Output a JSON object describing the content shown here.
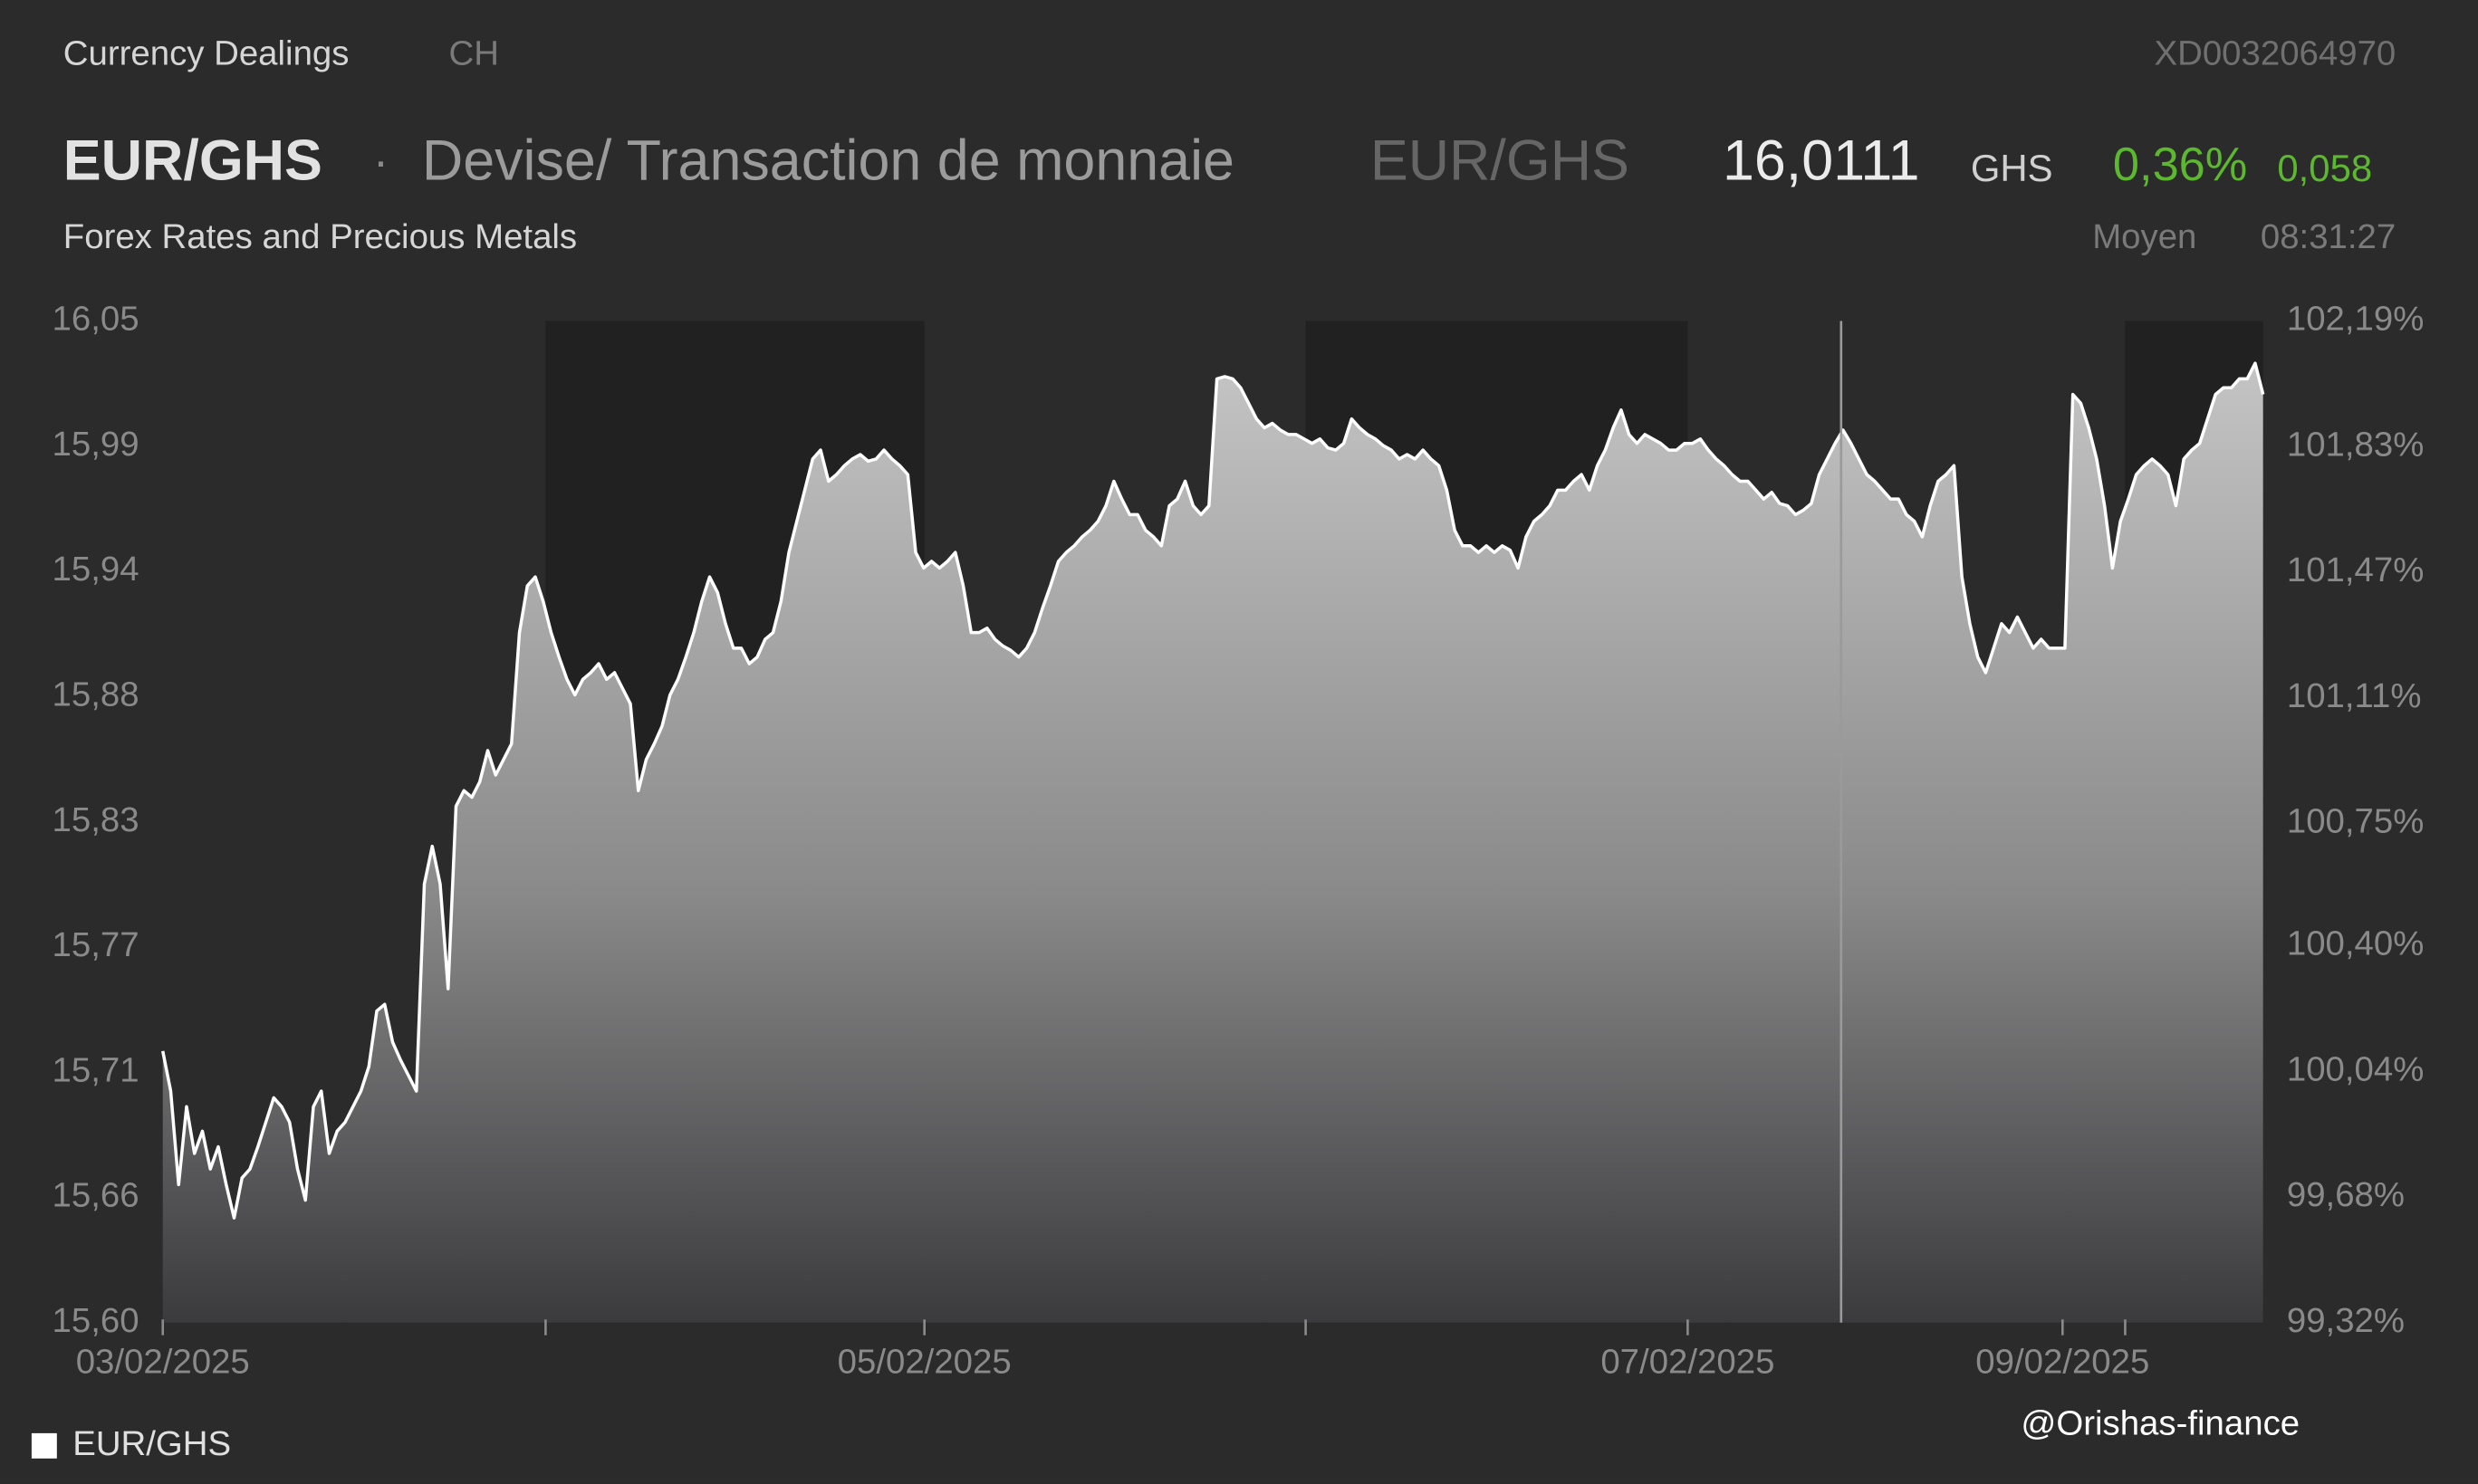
{
  "header": {
    "source": "Currency Dealings",
    "country": "CH",
    "isin": "XD0032064970",
    "symbol": "EUR/GHS",
    "separator": "·",
    "description": "Devise/ Transaction de monnaie",
    "symbol_alt": "EUR/GHS",
    "price": "16,0111",
    "currency": "GHS",
    "change_pct": "0,36%",
    "change_abs": "0,058",
    "subtitle": "Forex Rates and Precious Metals",
    "price_type": "Moyen",
    "time": "08:31:27"
  },
  "watermark": "@Orishas-finance",
  "chart_data": {
    "type": "area",
    "series": [
      {
        "name": "EUR/GHS",
        "color": "#ffffff",
        "values": [
          15.722,
          15.704,
          15.662,
          15.697,
          15.676,
          15.686,
          15.669,
          15.679,
          15.662,
          15.647,
          15.665,
          15.669,
          15.679,
          15.69,
          15.701,
          15.697,
          15.69,
          15.669,
          15.655,
          15.697,
          15.704,
          15.676,
          15.686,
          15.69,
          15.697,
          15.704,
          15.715,
          15.74,
          15.743,
          15.726,
          15.718,
          15.711,
          15.704,
          15.797,
          15.814,
          15.797,
          15.75,
          15.832,
          15.839,
          15.836,
          15.843,
          15.857,
          15.846,
          15.853,
          15.86,
          15.91,
          15.931,
          15.935,
          15.924,
          15.91,
          15.899,
          15.889,
          15.882,
          15.889,
          15.892,
          15.896,
          15.889,
          15.892,
          15.885,
          15.878,
          15.839,
          15.853,
          15.86,
          15.868,
          15.882,
          15.889,
          15.899,
          15.91,
          15.924,
          15.935,
          15.928,
          15.914,
          15.903,
          15.903,
          15.896,
          15.899,
          15.907,
          15.91,
          15.924,
          15.946,
          15.96,
          15.974,
          15.988,
          15.992,
          15.978,
          15.981,
          15.985,
          15.988,
          15.99,
          15.987,
          15.988,
          15.992,
          15.988,
          15.985,
          15.981,
          15.946,
          15.939,
          15.942,
          15.939,
          15.942,
          15.946,
          15.931,
          15.91,
          15.91,
          15.912,
          15.907,
          15.904,
          15.902,
          15.899,
          15.903,
          15.91,
          15.921,
          15.931,
          15.942,
          15.946,
          15.949,
          15.953,
          15.956,
          15.96,
          15.967,
          15.978,
          15.97,
          15.963,
          15.963,
          15.956,
          15.953,
          15.949,
          15.967,
          15.97,
          15.978,
          15.967,
          15.963,
          15.967,
          16.024,
          16.025,
          16.024,
          16.02,
          16.013,
          16.006,
          16.002,
          16.004,
          16.001,
          15.999,
          15.999,
          15.997,
          15.995,
          15.997,
          15.993,
          15.992,
          15.995,
          16.006,
          16.002,
          15.999,
          15.997,
          15.994,
          15.992,
          15.988,
          15.99,
          15.988,
          15.992,
          15.988,
          15.985,
          15.974,
          15.956,
          15.949,
          15.949,
          15.946,
          15.949,
          15.946,
          15.949,
          15.947,
          15.939,
          15.953,
          15.96,
          15.963,
          15.967,
          15.974,
          15.974,
          15.978,
          15.981,
          15.974,
          15.985,
          15.992,
          16.002,
          16.01,
          15.999,
          15.995,
          15.999,
          15.997,
          15.995,
          15.992,
          15.992,
          15.995,
          15.995,
          15.997,
          15.992,
          15.988,
          15.985,
          15.981,
          15.978,
          15.978,
          15.974,
          15.97,
          15.973,
          15.968,
          15.967,
          15.963,
          15.965,
          15.968,
          15.981,
          15.988,
          15.995,
          16.001,
          15.995,
          15.988,
          15.981,
          15.978,
          15.974,
          15.97,
          15.97,
          15.963,
          15.96,
          15.953,
          15.967,
          15.978,
          15.981,
          15.985,
          15.935,
          15.914,
          15.899,
          15.892,
          15.903,
          15.914,
          15.91,
          15.917,
          15.91,
          15.903,
          15.907,
          15.903,
          15.903,
          15.903,
          16.017,
          16.013,
          16.002,
          15.988,
          15.967,
          15.939,
          15.96,
          15.97,
          15.981,
          15.985,
          15.988,
          15.985,
          15.981,
          15.967,
          15.988,
          15.992,
          15.995,
          16.006,
          16.017,
          16.02,
          16.02,
          16.024,
          16.024,
          16.031,
          16.017
        ]
      }
    ],
    "xlim": [
      0,
      265
    ],
    "xticks": [
      {
        "value": 0,
        "label": "03/02/2025"
      },
      {
        "value": 96.1,
        "label": "05/02/2025"
      },
      {
        "value": 192.4,
        "label": "07/02/2025"
      },
      {
        "value": 239.7,
        "label": "09/02/2025"
      }
    ],
    "xminor_ticks": [
      48.3,
      144.2,
      247.6
    ],
    "shaded_x": [
      [
        48.3,
        96.1
      ],
      [
        144.2,
        192.4
      ],
      [
        247.6,
        265
      ]
    ],
    "ylim": [
      15.6,
      16.05
    ],
    "yticks": [
      {
        "value": 15.6,
        "label": "15,60"
      },
      {
        "value": 15.65625,
        "label": "15,66"
      },
      {
        "value": 15.7125,
        "label": "15,71"
      },
      {
        "value": 15.76875,
        "label": "15,77"
      },
      {
        "value": 15.825,
        "label": "15,83"
      },
      {
        "value": 15.88125,
        "label": "15,88"
      },
      {
        "value": 15.9375,
        "label": "15,94"
      },
      {
        "value": 15.99375,
        "label": "15,99"
      },
      {
        "value": 16.05,
        "label": "16,05"
      }
    ],
    "y2lim": [
      99.32,
      102.19
    ],
    "y2ticks": [
      {
        "value": 99.32,
        "label": "99,32%"
      },
      {
        "value": 99.68,
        "label": "99,68%"
      },
      {
        "value": 100.04,
        "label": "100,04%"
      },
      {
        "value": 100.4,
        "label": "100,40%"
      },
      {
        "value": 100.75,
        "label": "100,75%"
      },
      {
        "value": 101.11,
        "label": "101,11%"
      },
      {
        "value": 101.47,
        "label": "101,47%"
      },
      {
        "value": 101.83,
        "label": "101,83%"
      },
      {
        "value": 102.19,
        "label": "102,19%"
      }
    ],
    "legend": "bottom-left"
  }
}
